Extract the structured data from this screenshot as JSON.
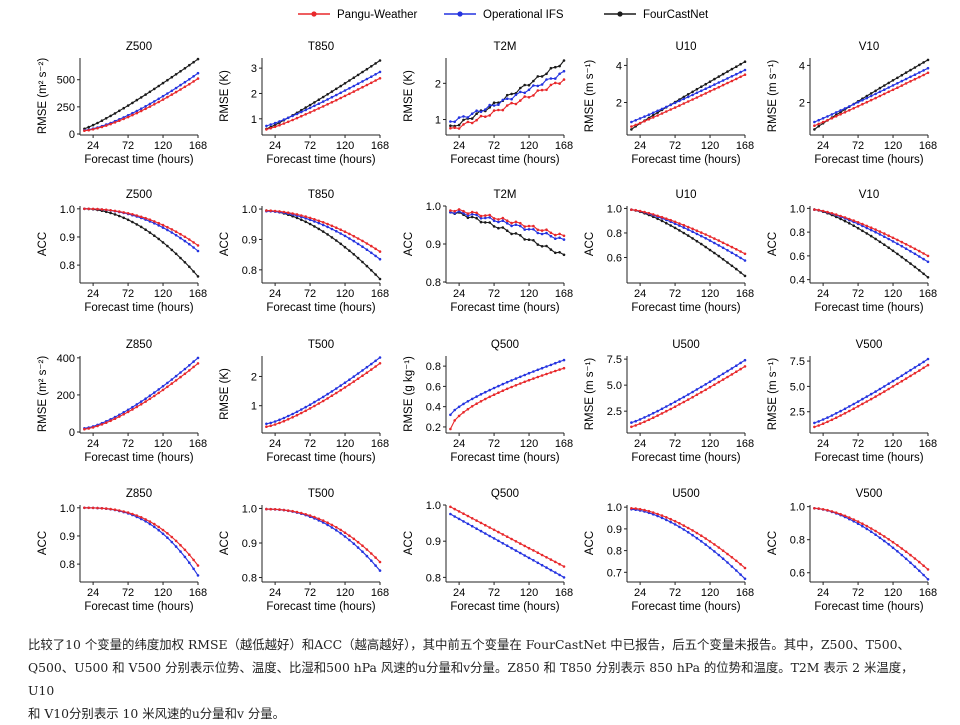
{
  "legend": [
    {
      "name": "Pangu-Weather",
      "color": "#e8282b"
    },
    {
      "name": "Operational IFS",
      "color": "#2433e0"
    },
    {
      "name": "FourCastNet",
      "color": "#1a1a1a"
    }
  ],
  "caption": [
    "比较了10 个变量的纬度加权 RMSE（越低越好）和ACC（越高越好），其中前五个变量在 FourCastNet 中已报告，后五个变量未报告。其中，Z500、T500、",
    "Q500、U500 和 V500 分别表示位势、温度、比湿和500 hPa 风速的u分量和v分量。Z850 和 T850 分别表示 850 hPa 的位势和温度。T2M 表示 2 米温度，U10",
    "和 V10分别表示 10 米风速的u分量和v 分量。"
  ],
  "chart_data": [
    {
      "type": "line",
      "title": "Z500",
      "xlabel": "Forecast time (hours)",
      "ylabel": "RMSE (m² s⁻²)",
      "xticks": [
        24,
        72,
        120,
        168
      ],
      "xlim": [
        6,
        168
      ],
      "ylim": [
        0,
        700
      ],
      "yticks": [
        0,
        250,
        500
      ],
      "series": [
        {
          "name": "Pangu-Weather",
          "start": 30,
          "end": 510,
          "shape": 1.4
        },
        {
          "name": "Operational IFS",
          "start": 34,
          "end": 560,
          "shape": 1.4
        },
        {
          "name": "FourCastNet",
          "start": 48,
          "end": 690,
          "shape": 1.15
        }
      ]
    },
    {
      "type": "line",
      "title": "T850",
      "xlabel": "Forecast time (hours)",
      "ylabel": "RMSE (K)",
      "xticks": [
        24,
        72,
        120,
        168
      ],
      "xlim": [
        6,
        168
      ],
      "ylim": [
        0.4,
        3.4
      ],
      "yticks": [
        1,
        2,
        3
      ],
      "series": [
        {
          "name": "Pangu-Weather",
          "start": 0.58,
          "end": 2.6,
          "shape": 1.15
        },
        {
          "name": "Operational IFS",
          "start": 0.72,
          "end": 2.85,
          "shape": 1.15
        },
        {
          "name": "FourCastNet",
          "start": 0.6,
          "end": 3.3,
          "shape": 1.1
        }
      ]
    },
    {
      "type": "line",
      "title": "T2M",
      "xlabel": "Forecast time (hours)",
      "ylabel": "RMSE (K)",
      "xticks": [
        24,
        72,
        120,
        168
      ],
      "xlim": [
        6,
        168
      ],
      "ylim": [
        0.6,
        2.7
      ],
      "yticks": [
        1,
        2
      ],
      "series": [
        {
          "name": "Pangu-Weather",
          "start": 0.72,
          "end": 2.1,
          "shape": 1.1
        },
        {
          "name": "Operational IFS",
          "start": 0.95,
          "end": 2.3,
          "shape": 1.15
        },
        {
          "name": "FourCastNet",
          "start": 0.78,
          "end": 2.6,
          "shape": 1.1
        }
      ]
    },
    {
      "type": "line",
      "title": "U10",
      "xlabel": "Forecast time (hours)",
      "ylabel": "RMSE (m s⁻¹)",
      "xticks": [
        24,
        72,
        120,
        168
      ],
      "xlim": [
        6,
        168
      ],
      "ylim": [
        0.3,
        4.4
      ],
      "yticks": [
        2,
        4
      ],
      "series": [
        {
          "name": "Pangu-Weather",
          "start": 0.7,
          "end": 3.5,
          "shape": 1.05
        },
        {
          "name": "Operational IFS",
          "start": 0.95,
          "end": 3.75,
          "shape": 1.05
        },
        {
          "name": "FourCastNet",
          "start": 0.55,
          "end": 4.2,
          "shape": 0.95
        }
      ]
    },
    {
      "type": "line",
      "title": "V10",
      "xlabel": "Forecast time (hours)",
      "ylabel": "RMSE (m s⁻¹)",
      "xticks": [
        24,
        72,
        120,
        168
      ],
      "xlim": [
        6,
        168
      ],
      "ylim": [
        0.3,
        4.4
      ],
      "yticks": [
        2,
        4
      ],
      "series": [
        {
          "name": "Pangu-Weather",
          "start": 0.75,
          "end": 3.6,
          "shape": 1.05
        },
        {
          "name": "Operational IFS",
          "start": 0.95,
          "end": 3.85,
          "shape": 1.05
        },
        {
          "name": "FourCastNet",
          "start": 0.55,
          "end": 4.3,
          "shape": 0.95
        }
      ]
    },
    {
      "type": "line",
      "title": "Z500",
      "xlabel": "Forecast time (hours)",
      "ylabel": "ACC",
      "xticks": [
        24,
        72,
        120,
        168
      ],
      "xlim": [
        6,
        168
      ],
      "ylim": [
        0.74,
        1.01
      ],
      "yticks": [
        0.8,
        0.9,
        1.0
      ],
      "series": [
        {
          "name": "Pangu-Weather",
          "start": 1.0,
          "end": 0.87,
          "shape": 2.2
        },
        {
          "name": "Operational IFS",
          "start": 1.0,
          "end": 0.85,
          "shape": 2.2
        },
        {
          "name": "FourCastNet",
          "start": 1.0,
          "end": 0.76,
          "shape": 1.9
        }
      ]
    },
    {
      "type": "line",
      "title": "T850",
      "xlabel": "Forecast time (hours)",
      "ylabel": "ACC",
      "xticks": [
        24,
        72,
        120,
        168
      ],
      "xlim": [
        6,
        168
      ],
      "ylim": [
        0.76,
        1.01
      ],
      "yticks": [
        0.8,
        0.9,
        1.0
      ],
      "series": [
        {
          "name": "Pangu-Weather",
          "start": 0.995,
          "end": 0.86,
          "shape": 1.8
        },
        {
          "name": "Operational IFS",
          "start": 0.993,
          "end": 0.835,
          "shape": 1.8
        },
        {
          "name": "FourCastNet",
          "start": 0.995,
          "end": 0.77,
          "shape": 1.7
        }
      ]
    },
    {
      "type": "line",
      "title": "T2M",
      "xlabel": "Forecast time (hours)",
      "ylabel": "ACC",
      "xticks": [
        24,
        72,
        120,
        168
      ],
      "xlim": [
        6,
        168
      ],
      "ylim": [
        0.8,
        1.0
      ],
      "yticks": [
        0.8,
        0.9,
        1.0
      ],
      "series": [
        {
          "name": "Pangu-Weather",
          "start": 0.99,
          "end": 0.92,
          "shape": 1.3
        },
        {
          "name": "Operational IFS",
          "start": 0.985,
          "end": 0.91,
          "shape": 1.3
        },
        {
          "name": "FourCastNet",
          "start": 0.985,
          "end": 0.87,
          "shape": 1.2
        }
      ]
    },
    {
      "type": "line",
      "title": "U10",
      "xlabel": "Forecast time (hours)",
      "ylabel": "ACC",
      "xticks": [
        24,
        72,
        120,
        168
      ],
      "xlim": [
        6,
        168
      ],
      "ylim": [
        0.4,
        1.02
      ],
      "yticks": [
        0.6,
        0.8,
        1.0
      ],
      "series": [
        {
          "name": "Pangu-Weather",
          "start": 0.99,
          "end": 0.63,
          "shape": 1.35
        },
        {
          "name": "Operational IFS",
          "start": 0.99,
          "end": 0.575,
          "shape": 1.35
        },
        {
          "name": "FourCastNet",
          "start": 0.99,
          "end": 0.45,
          "shape": 1.35
        }
      ]
    },
    {
      "type": "line",
      "title": "V10",
      "xlabel": "Forecast time (hours)",
      "ylabel": "ACC",
      "xticks": [
        24,
        72,
        120,
        168
      ],
      "xlim": [
        6,
        168
      ],
      "ylim": [
        0.38,
        1.02
      ],
      "yticks": [
        0.4,
        0.6,
        0.8,
        1.0
      ],
      "series": [
        {
          "name": "Pangu-Weather",
          "start": 0.99,
          "end": 0.6,
          "shape": 1.35
        },
        {
          "name": "Operational IFS",
          "start": 0.99,
          "end": 0.55,
          "shape": 1.35
        },
        {
          "name": "FourCastNet",
          "start": 0.99,
          "end": 0.42,
          "shape": 1.35
        }
      ]
    },
    {
      "type": "line",
      "title": "Z850",
      "xlabel": "Forecast time (hours)",
      "ylabel": "RMSE (m² s⁻²)",
      "xticks": [
        24,
        72,
        120,
        168
      ],
      "xlim": [
        6,
        168
      ],
      "ylim": [
        0,
        410
      ],
      "yticks": [
        0,
        200,
        400
      ],
      "series": [
        {
          "name": "Pangu-Weather",
          "start": 15,
          "end": 370,
          "shape": 1.4
        },
        {
          "name": "Operational IFS",
          "start": 20,
          "end": 400,
          "shape": 1.4
        }
      ]
    },
    {
      "type": "line",
      "title": "T500",
      "xlabel": "Forecast time (hours)",
      "ylabel": "RMSE (K)",
      "xticks": [
        24,
        72,
        120,
        168
      ],
      "xlim": [
        6,
        168
      ],
      "ylim": [
        0.1,
        2.7
      ],
      "yticks": [
        1,
        2
      ],
      "series": [
        {
          "name": "Pangu-Weather",
          "start": 0.28,
          "end": 2.45,
          "shape": 1.3
        },
        {
          "name": "Operational IFS",
          "start": 0.38,
          "end": 2.65,
          "shape": 1.3
        }
      ]
    },
    {
      "type": "line",
      "title": "Q500",
      "xlabel": "Forecast time (hours)",
      "ylabel": "RMSE (g kg⁻¹)",
      "xticks": [
        24,
        72,
        120,
        168
      ],
      "xlim": [
        6,
        168
      ],
      "ylim": [
        0.15,
        0.9
      ],
      "yticks": [
        0.2,
        0.4,
        0.6,
        0.8
      ],
      "series": [
        {
          "name": "Pangu-Weather",
          "start": 0.18,
          "end": 0.78,
          "shape": 0.6
        },
        {
          "name": "Operational IFS",
          "start": 0.32,
          "end": 0.86,
          "shape": 0.75
        }
      ]
    },
    {
      "type": "line",
      "title": "U500",
      "xlabel": "Forecast time (hours)",
      "ylabel": "RMSE (m s⁻¹)",
      "xticks": [
        24,
        72,
        120,
        168
      ],
      "xlim": [
        6,
        168
      ],
      "ylim": [
        0.5,
        7.8
      ],
      "yticks": [
        2.5,
        5.0,
        7.5
      ],
      "series": [
        {
          "name": "Pangu-Weather",
          "start": 1.0,
          "end": 6.8,
          "shape": 1.15
        },
        {
          "name": "Operational IFS",
          "start": 1.4,
          "end": 7.4,
          "shape": 1.15
        }
      ]
    },
    {
      "type": "line",
      "title": "V500",
      "xlabel": "Forecast time (hours)",
      "ylabel": "RMSE (m s⁻¹)",
      "xticks": [
        24,
        72,
        120,
        168
      ],
      "xlim": [
        6,
        168
      ],
      "ylim": [
        0.5,
        8.0
      ],
      "yticks": [
        2.5,
        5.0,
        7.5
      ],
      "series": [
        {
          "name": "Pangu-Weather",
          "start": 1.0,
          "end": 7.1,
          "shape": 1.15
        },
        {
          "name": "Operational IFS",
          "start": 1.4,
          "end": 7.7,
          "shape": 1.15
        }
      ]
    },
    {
      "type": "line",
      "title": "Z850",
      "xlabel": "Forecast time (hours)",
      "ylabel": "ACC",
      "xticks": [
        24,
        72,
        120,
        168
      ],
      "xlim": [
        6,
        168
      ],
      "ylim": [
        0.74,
        1.01
      ],
      "yticks": [
        0.8,
        0.9,
        1.0
      ],
      "series": [
        {
          "name": "Pangu-Weather",
          "start": 1.0,
          "end": 0.795,
          "shape": 2.6
        },
        {
          "name": "Operational IFS",
          "start": 1.0,
          "end": 0.76,
          "shape": 2.6
        }
      ]
    },
    {
      "type": "line",
      "title": "T500",
      "xlabel": "Forecast time (hours)",
      "ylabel": "ACC",
      "xticks": [
        24,
        72,
        120,
        168
      ],
      "xlim": [
        6,
        168
      ],
      "ylim": [
        0.79,
        1.01
      ],
      "yticks": [
        0.8,
        0.9,
        1.0
      ],
      "series": [
        {
          "name": "Pangu-Weather",
          "start": 0.998,
          "end": 0.845,
          "shape": 2.2
        },
        {
          "name": "Operational IFS",
          "start": 0.998,
          "end": 0.82,
          "shape": 2.2
        }
      ]
    },
    {
      "type": "line",
      "title": "Q500",
      "xlabel": "Forecast time (hours)",
      "ylabel": "ACC",
      "xticks": [
        24,
        72,
        120,
        168
      ],
      "xlim": [
        6,
        168
      ],
      "ylim": [
        0.79,
        1.0
      ],
      "yticks": [
        0.8,
        0.9,
        1.0
      ],
      "series": [
        {
          "name": "Pangu-Weather",
          "start": 0.995,
          "end": 0.83,
          "shape": 1.0
        },
        {
          "name": "Operational IFS",
          "start": 0.975,
          "end": 0.8,
          "shape": 1.0
        }
      ]
    },
    {
      "type": "line",
      "title": "U500",
      "xlabel": "Forecast time (hours)",
      "ylabel": "ACC",
      "xticks": [
        24,
        72,
        120,
        168
      ],
      "xlim": [
        6,
        168
      ],
      "ylim": [
        0.66,
        1.01
      ],
      "yticks": [
        0.7,
        0.8,
        0.9,
        1.0
      ],
      "series": [
        {
          "name": "Pangu-Weather",
          "start": 0.995,
          "end": 0.72,
          "shape": 1.6
        },
        {
          "name": "Operational IFS",
          "start": 0.99,
          "end": 0.67,
          "shape": 1.6
        }
      ]
    },
    {
      "type": "line",
      "title": "V500",
      "xlabel": "Forecast time (hours)",
      "ylabel": "ACC",
      "xticks": [
        24,
        72,
        120,
        168
      ],
      "xlim": [
        6,
        168
      ],
      "ylim": [
        0.55,
        1.01
      ],
      "yticks": [
        0.6,
        0.8,
        1.0
      ],
      "series": [
        {
          "name": "Pangu-Weather",
          "start": 0.99,
          "end": 0.62,
          "shape": 1.6
        },
        {
          "name": "Operational IFS",
          "start": 0.99,
          "end": 0.56,
          "shape": 1.6
        }
      ]
    }
  ]
}
